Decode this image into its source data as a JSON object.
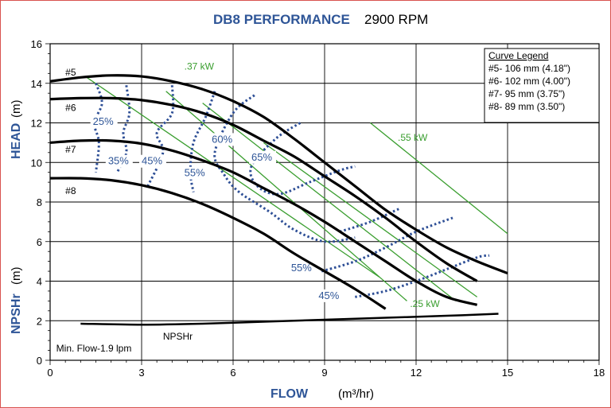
{
  "chart_data": {
    "type": "line",
    "title_main": "DB8 PERFORMANCE",
    "title_rpm": "2900 RPM",
    "xlabel": "FLOW",
    "xlabel_unit": "(m³/hr)",
    "ylabel_top": "HEAD",
    "ylabel_top_unit": "(m)",
    "ylabel_bottom": "NPSHr",
    "ylabel_bottom_unit": "(m)",
    "xlim": [
      0,
      18
    ],
    "ylim": [
      0,
      16
    ],
    "x_ticks": [
      0,
      3,
      6,
      9,
      12,
      15,
      18
    ],
    "y_ticks": [
      0,
      2,
      4,
      6,
      8,
      10,
      12,
      14,
      16
    ],
    "legend": {
      "title": "Curve Legend",
      "entries": [
        "#5- 106 mm (4.18\")",
        "#6- 102 mm (4.00\")",
        "#7- 95 mm (3.75\")",
        "#8- 89 mm (3.50\")"
      ],
      "placement": "top-right"
    },
    "series": [
      {
        "name": "#5",
        "label_pos": [
          0.5,
          14.4
        ],
        "x": [
          0,
          1,
          2,
          3,
          4,
          5,
          6,
          7,
          8,
          9,
          10,
          11,
          12,
          13,
          14,
          15
        ],
        "y": [
          14.1,
          14.3,
          14.4,
          14.35,
          14.1,
          13.7,
          13.1,
          12.3,
          11.2,
          10.0,
          8.8,
          7.6,
          6.6,
          5.7,
          5.0,
          4.4
        ]
      },
      {
        "name": "#6",
        "label_pos": [
          0.5,
          12.6
        ],
        "x": [
          0,
          1,
          2,
          3,
          4,
          5,
          6,
          7,
          8,
          9,
          10,
          11,
          12,
          13,
          14
        ],
        "y": [
          13.2,
          13.25,
          13.25,
          13.15,
          12.9,
          12.5,
          11.9,
          11.1,
          10.3,
          9.3,
          8.3,
          7.2,
          6.0,
          4.9,
          4.0
        ]
      },
      {
        "name": "#7",
        "label_pos": [
          0.5,
          10.5
        ],
        "x": [
          0,
          1,
          2,
          3,
          4,
          5,
          6,
          7,
          8,
          9,
          10,
          11,
          12,
          13,
          14
        ],
        "y": [
          11.0,
          11.1,
          11.1,
          10.95,
          10.6,
          10.1,
          9.5,
          8.7,
          7.9,
          7.0,
          6.0,
          5.0,
          4.0,
          3.2,
          2.8
        ]
      },
      {
        "name": "#8",
        "label_pos": [
          0.5,
          8.4
        ],
        "x": [
          0,
          1,
          2,
          3,
          4,
          5,
          6,
          7,
          8,
          9,
          10,
          11
        ],
        "y": [
          9.2,
          9.2,
          9.1,
          8.85,
          8.45,
          7.9,
          7.2,
          6.4,
          5.4,
          4.5,
          3.6,
          2.6
        ]
      }
    ],
    "npshr": {
      "label": "NPSHr",
      "label_pos": [
        3.7,
        1.05
      ],
      "x": [
        1,
        3,
        5,
        7,
        9,
        11,
        13,
        14.7
      ],
      "y": [
        1.85,
        1.8,
        1.85,
        1.95,
        2.05,
        2.15,
        2.25,
        2.35
      ]
    },
    "power_lines": [
      {
        "label": ".37 kW",
        "label_pos": [
          4.4,
          14.7
        ],
        "x": [
          1.2,
          10.8
        ],
        "y": [
          14.3,
          4.2
        ]
      },
      {
        "label": ".55 kW",
        "label_pos": [
          11.4,
          11.1
        ],
        "x": [
          10.5,
          15.0
        ],
        "y": [
          12.0,
          6.4
        ]
      },
      {
        "label": ".25 kW",
        "label_pos": [
          11.8,
          2.7
        ],
        "x": [
          3.8,
          11.7
        ],
        "y": [
          13.6,
          3.0
        ]
      },
      {
        "label": "",
        "x": [
          5.0,
          13.3
        ],
        "y": [
          13.0,
          3.0
        ]
      },
      {
        "label": "",
        "x": [
          7.0,
          14.0
        ],
        "y": [
          11.0,
          3.2
        ]
      }
    ],
    "efficiency_lines": [
      {
        "label": "25%",
        "label_pos": [
          1.4,
          11.9
        ],
        "x": [
          1.5,
          1.7,
          1.45,
          1.6,
          1.5
        ],
        "y": [
          14.0,
          13.0,
          12.0,
          11.0,
          9.5
        ]
      },
      {
        "label": "35%",
        "label_pos": [
          1.9,
          9.9
        ],
        "x": [
          2.5,
          2.6,
          2.4,
          2.5,
          2.2
        ],
        "y": [
          13.9,
          12.5,
          11.5,
          10.5,
          9.5
        ]
      },
      {
        "label": "45%",
        "label_pos": [
          3.0,
          9.9
        ],
        "x": [
          4.0,
          4.0,
          3.5,
          3.7,
          3.2
        ],
        "y": [
          13.9,
          12.5,
          11.5,
          10.5,
          8.8
        ]
      },
      {
        "label": "55%",
        "label_pos": [
          4.4,
          9.3
        ],
        "x": [
          5.4,
          5.1,
          4.7,
          4.6,
          4.7
        ],
        "y": [
          13.6,
          12.3,
          11.0,
          9.5,
          8.5
        ]
      },
      {
        "label": "60%",
        "label_pos": [
          5.3,
          11.0
        ],
        "x": [
          6.7,
          6.0,
          5.4,
          5.7,
          6.2,
          7.2,
          8.0,
          9.0,
          10.0
        ],
        "y": [
          13.4,
          12.5,
          10.5,
          9.4,
          8.5,
          7.5,
          6.6,
          6.0,
          6.2
        ]
      },
      {
        "label": "65%",
        "label_pos": [
          6.6,
          10.1
        ],
        "x": [
          8.2,
          7.4,
          6.6,
          6.8,
          7.5,
          8.5,
          9.5,
          10.0
        ],
        "y": [
          12.0,
          11.2,
          9.8,
          8.8,
          8.4,
          9.0,
          9.6,
          9.8
        ]
      },
      {
        "label": "55%",
        "label_pos": [
          7.9,
          4.5
        ],
        "x": [
          8.9,
          10.0,
          11.0,
          12.0,
          13.2
        ],
        "y": [
          4.5,
          5.0,
          5.7,
          6.5,
          7.2
        ]
      },
      {
        "label": "45%",
        "label_pos": [
          8.8,
          3.1
        ],
        "x": [
          10.0,
          11.0,
          12.0,
          13.0,
          14.0,
          14.4
        ],
        "y": [
          3.2,
          3.5,
          4.0,
          4.6,
          5.2,
          5.3
        ]
      },
      {
        "label": "",
        "x": [
          9.5,
          10.5,
          11.5
        ],
        "y": [
          6.5,
          7.0,
          7.7
        ]
      }
    ],
    "annotations": [
      {
        "text": "Min. Flow-1.9 lpm",
        "pos": [
          0.2,
          0.45
        ]
      }
    ],
    "grid": true
  }
}
